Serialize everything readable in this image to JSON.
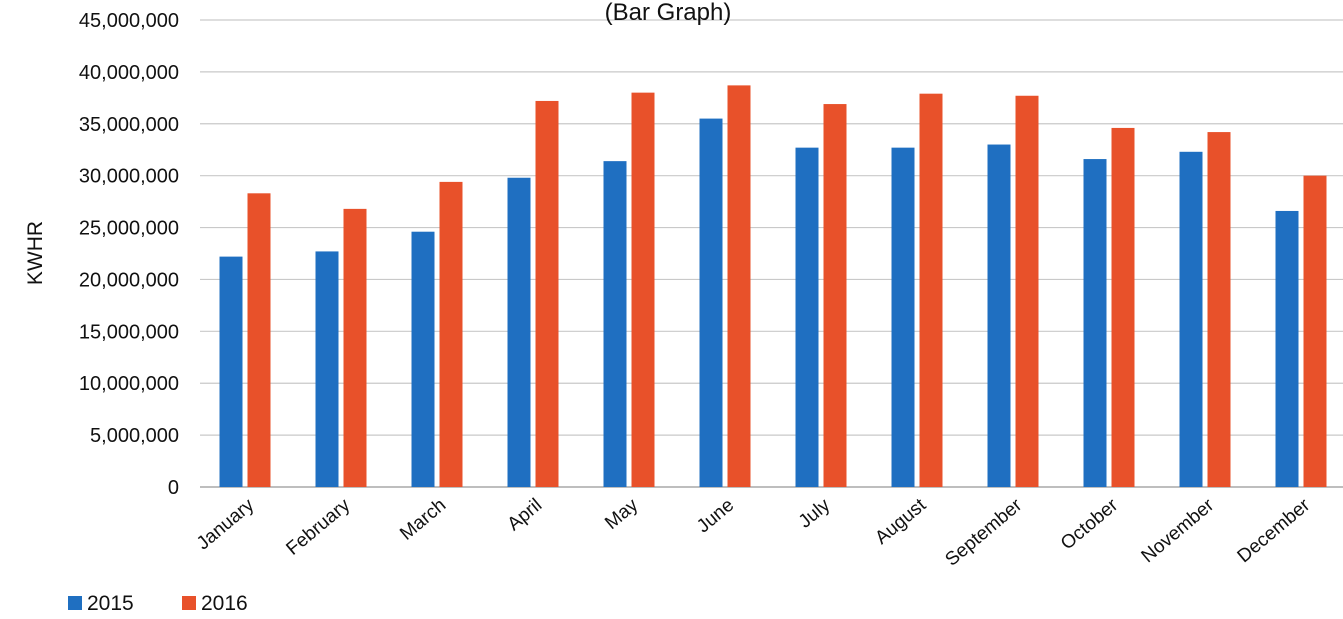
{
  "chart_data": {
    "type": "bar",
    "title": "(Bar Graph)",
    "ylabel": "KWHR",
    "xlabel": "",
    "ylim": [
      0,
      45000000
    ],
    "yticks": [
      0,
      5000000,
      10000000,
      15000000,
      20000000,
      25000000,
      30000000,
      35000000,
      40000000,
      45000000
    ],
    "ytick_labels": [
      "0",
      "5,000,000",
      "10,000,000",
      "15,000,000",
      "20,000,000",
      "25,000,000",
      "30,000,000",
      "35,000,000",
      "40,000,000",
      "45,000,000"
    ],
    "categories": [
      "January",
      "February",
      "March",
      "April",
      "May",
      "June",
      "July",
      "August",
      "September",
      "October",
      "November",
      "December"
    ],
    "series": [
      {
        "name": "2015",
        "color": "#1f6fc1",
        "values": [
          22200000,
          22700000,
          24600000,
          29800000,
          31400000,
          35500000,
          32700000,
          32700000,
          33000000,
          31600000,
          32300000,
          26600000
        ]
      },
      {
        "name": "2016",
        "color": "#e8512a",
        "values": [
          28300000,
          26800000,
          29400000,
          37200000,
          38000000,
          38700000,
          36900000,
          37900000,
          37700000,
          34600000,
          34200000,
          30000000
        ]
      }
    ],
    "grid": true,
    "legend_position": "bottom-left"
  }
}
